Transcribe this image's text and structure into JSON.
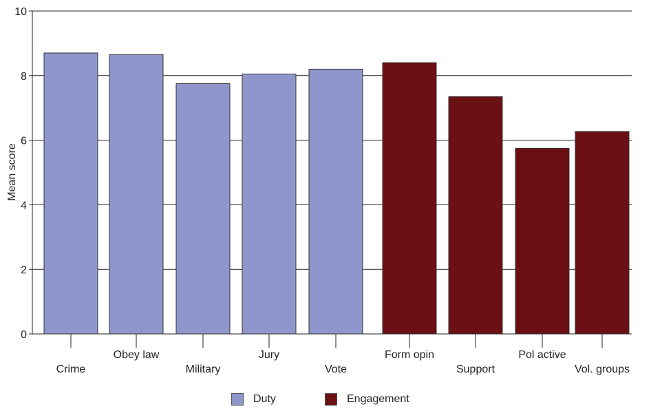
{
  "chart_data": {
    "type": "bar",
    "ylabel": "Mean score",
    "ylim": [
      0,
      10
    ],
    "yticks": [
      0,
      2,
      4,
      6,
      8,
      10
    ],
    "grid": true,
    "legend_position": "bottom",
    "categories": [
      "Crime",
      "Obey law",
      "Military",
      "Jury",
      "Vote",
      "Form opin",
      "Support",
      "Pol active",
      "Vol. groups"
    ],
    "series": [
      {
        "name": "Duty",
        "color": "#8f96cb",
        "values": [
          8.7,
          8.65,
          7.75,
          8.05,
          8.2,
          null,
          null,
          null,
          null
        ]
      },
      {
        "name": "Engagement",
        "color": "#6b1014",
        "values": [
          null,
          null,
          null,
          null,
          null,
          8.4,
          7.35,
          5.75,
          6.27
        ]
      }
    ]
  }
}
